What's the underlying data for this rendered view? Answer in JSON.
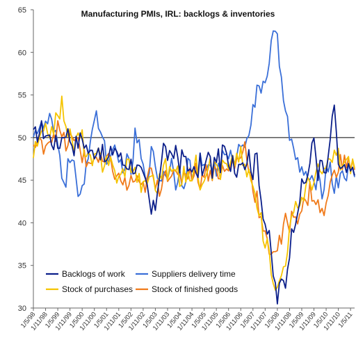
{
  "chart_data": {
    "type": "line",
    "title": "Manufacturing PMIs, IRL: backlogs & inventories",
    "xlabel": "",
    "ylabel": "",
    "ylim": [
      30,
      65
    ],
    "yticks": [
      30,
      35,
      40,
      45,
      50,
      55,
      60,
      65
    ],
    "reference_line": 50,
    "x_tick_labels": [
      "1/5/98",
      "1/11/98",
      "1/5/99",
      "1/11/99",
      "1/5/00",
      "1/11/00",
      "1/5/01",
      "1/11/01",
      "1/5/02",
      "1/11/02",
      "1/5/03",
      "1/11/03",
      "1/5/04",
      "1/11/04",
      "1/5/05",
      "1/11/05",
      "1/5/06",
      "1/11/06",
      "1/5/07",
      "1/11/07",
      "1/5/08",
      "1/11/08",
      "1/5/09",
      "1/11/09",
      "1/5/10",
      "1/11/10",
      "1/5/11"
    ],
    "x_start": "1998-05",
    "x_end": "2011-07",
    "legend_position": "bottom-left",
    "series": [
      {
        "name": "Backlogs of work",
        "color": "#0b1f8a",
        "anchors": [
          [
            0,
            50
          ],
          [
            4,
            51
          ],
          [
            8,
            50
          ],
          [
            12,
            49
          ],
          [
            16,
            51
          ],
          [
            20,
            49
          ],
          [
            24,
            50
          ],
          [
            28,
            48
          ],
          [
            32,
            49
          ],
          [
            36,
            47
          ],
          [
            40,
            49
          ],
          [
            44,
            47
          ],
          [
            48,
            47
          ],
          [
            52,
            46
          ],
          [
            56,
            44
          ],
          [
            58,
            41
          ],
          [
            60,
            42
          ],
          [
            62,
            46
          ],
          [
            64,
            49
          ],
          [
            66,
            48
          ],
          [
            68,
            47
          ],
          [
            70,
            49
          ],
          [
            72,
            47
          ],
          [
            74,
            48
          ],
          [
            76,
            46
          ],
          [
            78,
            47
          ],
          [
            80,
            45
          ],
          [
            82,
            47
          ],
          [
            84,
            46
          ],
          [
            86,
            48
          ],
          [
            88,
            46
          ],
          [
            90,
            48
          ],
          [
            92,
            47
          ],
          [
            94,
            49
          ],
          [
            96,
            46
          ],
          [
            98,
            48
          ],
          [
            100,
            46
          ],
          [
            102,
            48
          ],
          [
            104,
            47
          ],
          [
            106,
            48
          ],
          [
            108,
            46
          ],
          [
            110,
            48
          ],
          [
            112,
            43
          ],
          [
            114,
            40
          ],
          [
            116,
            38
          ],
          [
            118,
            34
          ],
          [
            120,
            31
          ],
          [
            122,
            33
          ],
          [
            124,
            33
          ],
          [
            126,
            37
          ],
          [
            128,
            40
          ],
          [
            130,
            42
          ],
          [
            132,
            44
          ],
          [
            134,
            45
          ],
          [
            136,
            47
          ],
          [
            138,
            50
          ],
          [
            140,
            46
          ],
          [
            142,
            47
          ],
          [
            144,
            45
          ],
          [
            146,
            50
          ],
          [
            148,
            53
          ],
          [
            149,
            51
          ],
          [
            150,
            47
          ],
          [
            151,
            46
          ]
        ]
      },
      {
        "name": "Suppliers delivery time",
        "color": "#3a6fd8",
        "anchors": [
          [
            0,
            51
          ],
          [
            4,
            51
          ],
          [
            8,
            52
          ],
          [
            12,
            49
          ],
          [
            14,
            46
          ],
          [
            16,
            45
          ],
          [
            18,
            48
          ],
          [
            20,
            47
          ],
          [
            22,
            42
          ],
          [
            24,
            44
          ],
          [
            26,
            47
          ],
          [
            28,
            50
          ],
          [
            30,
            52
          ],
          [
            32,
            52
          ],
          [
            34,
            50
          ],
          [
            36,
            48
          ],
          [
            38,
            47
          ],
          [
            40,
            48
          ],
          [
            42,
            47
          ],
          [
            44,
            47
          ],
          [
            46,
            47
          ],
          [
            48,
            46
          ],
          [
            50,
            50
          ],
          [
            52,
            49
          ],
          [
            54,
            46
          ],
          [
            56,
            46
          ],
          [
            58,
            48
          ],
          [
            60,
            47
          ],
          [
            62,
            45
          ],
          [
            64,
            46
          ],
          [
            66,
            46
          ],
          [
            68,
            47
          ],
          [
            70,
            45
          ],
          [
            72,
            46
          ],
          [
            74,
            45
          ],
          [
            76,
            47
          ],
          [
            78,
            46
          ],
          [
            80,
            46
          ],
          [
            82,
            47
          ],
          [
            84,
            46
          ],
          [
            86,
            47
          ],
          [
            88,
            47
          ],
          [
            90,
            46
          ],
          [
            92,
            47
          ],
          [
            94,
            48
          ],
          [
            96,
            47
          ],
          [
            98,
            48
          ],
          [
            100,
            48
          ],
          [
            102,
            49
          ],
          [
            104,
            50
          ],
          [
            106,
            51
          ],
          [
            108,
            53
          ],
          [
            110,
            55
          ],
          [
            112,
            56
          ],
          [
            114,
            57
          ],
          [
            116,
            59
          ],
          [
            118,
            62
          ],
          [
            120,
            61
          ],
          [
            122,
            57
          ],
          [
            124,
            54
          ],
          [
            126,
            50
          ],
          [
            128,
            48
          ],
          [
            130,
            47
          ],
          [
            132,
            46
          ],
          [
            134,
            46
          ],
          [
            136,
            44
          ],
          [
            138,
            45
          ],
          [
            140,
            45
          ],
          [
            142,
            44
          ],
          [
            144,
            46
          ],
          [
            146,
            47
          ],
          [
            148,
            44
          ],
          [
            150,
            45
          ],
          [
            151,
            46
          ]
        ]
      },
      {
        "name": "Stock of purchases",
        "color": "#f5c400",
        "anchors": [
          [
            0,
            48
          ],
          [
            4,
            50
          ],
          [
            8,
            51
          ],
          [
            12,
            52
          ],
          [
            14,
            54
          ],
          [
            16,
            52
          ],
          [
            18,
            50
          ],
          [
            20,
            49
          ],
          [
            22,
            50
          ],
          [
            24,
            50
          ],
          [
            26,
            48
          ],
          [
            28,
            47
          ],
          [
            30,
            47
          ],
          [
            32,
            48
          ],
          [
            34,
            47
          ],
          [
            36,
            48
          ],
          [
            38,
            47
          ],
          [
            40,
            46
          ],
          [
            42,
            45
          ],
          [
            44,
            46
          ],
          [
            46,
            47
          ],
          [
            48,
            47
          ],
          [
            50,
            46
          ],
          [
            52,
            45
          ],
          [
            54,
            44
          ],
          [
            56,
            45
          ],
          [
            58,
            46
          ],
          [
            60,
            44
          ],
          [
            62,
            45
          ],
          [
            64,
            47
          ],
          [
            66,
            46
          ],
          [
            68,
            46
          ],
          [
            70,
            46
          ],
          [
            72,
            45
          ],
          [
            74,
            46
          ],
          [
            76,
            45
          ],
          [
            78,
            46
          ],
          [
            80,
            47
          ],
          [
            82,
            45
          ],
          [
            84,
            46
          ],
          [
            86,
            47
          ],
          [
            88,
            46
          ],
          [
            90,
            47
          ],
          [
            92,
            46
          ],
          [
            94,
            47
          ],
          [
            96,
            46
          ],
          [
            98,
            47
          ],
          [
            100,
            48
          ],
          [
            102,
            48
          ],
          [
            104,
            46
          ],
          [
            106,
            46
          ],
          [
            108,
            44
          ],
          [
            110,
            42
          ],
          [
            112,
            40
          ],
          [
            114,
            38
          ],
          [
            116,
            36
          ],
          [
            118,
            34
          ],
          [
            120,
            32
          ],
          [
            122,
            34
          ],
          [
            124,
            36
          ],
          [
            126,
            39
          ],
          [
            128,
            41
          ],
          [
            130,
            42
          ],
          [
            132,
            43
          ],
          [
            134,
            44
          ],
          [
            136,
            45
          ],
          [
            138,
            45
          ],
          [
            140,
            46
          ],
          [
            142,
            46
          ],
          [
            144,
            46
          ],
          [
            146,
            47
          ],
          [
            148,
            48
          ],
          [
            150,
            48
          ],
          [
            151,
            47
          ]
        ]
      },
      {
        "name": "Stock of finished goods",
        "color": "#f07a1a",
        "anchors": [
          [
            0,
            49
          ],
          [
            4,
            49
          ],
          [
            8,
            50
          ],
          [
            12,
            51
          ],
          [
            14,
            50
          ],
          [
            16,
            49
          ],
          [
            18,
            50
          ],
          [
            20,
            49
          ],
          [
            22,
            50
          ],
          [
            24,
            48
          ],
          [
            26,
            47
          ],
          [
            28,
            47
          ],
          [
            30,
            48
          ],
          [
            32,
            47
          ],
          [
            34,
            47
          ],
          [
            36,
            47
          ],
          [
            38,
            47
          ],
          [
            40,
            46
          ],
          [
            42,
            45
          ],
          [
            44,
            45
          ],
          [
            46,
            44
          ],
          [
            48,
            45
          ],
          [
            50,
            45
          ],
          [
            52,
            44
          ],
          [
            54,
            44
          ],
          [
            56,
            45
          ],
          [
            58,
            46
          ],
          [
            60,
            44
          ],
          [
            62,
            44
          ],
          [
            64,
            46
          ],
          [
            66,
            46
          ],
          [
            68,
            46
          ],
          [
            70,
            45
          ],
          [
            72,
            45
          ],
          [
            74,
            46
          ],
          [
            76,
            46
          ],
          [
            78,
            46
          ],
          [
            80,
            46
          ],
          [
            82,
            45
          ],
          [
            84,
            46
          ],
          [
            86,
            46
          ],
          [
            88,
            46
          ],
          [
            90,
            46
          ],
          [
            92,
            46
          ],
          [
            94,
            46
          ],
          [
            96,
            46
          ],
          [
            98,
            47
          ],
          [
            100,
            47
          ],
          [
            102,
            48
          ],
          [
            104,
            49
          ],
          [
            106,
            47
          ],
          [
            108,
            44
          ],
          [
            110,
            43
          ],
          [
            112,
            40
          ],
          [
            114,
            38
          ],
          [
            116,
            37
          ],
          [
            118,
            37
          ],
          [
            120,
            37
          ],
          [
            122,
            38
          ],
          [
            124,
            40
          ],
          [
            126,
            40
          ],
          [
            128,
            41
          ],
          [
            130,
            41
          ],
          [
            132,
            42
          ],
          [
            134,
            42
          ],
          [
            136,
            44
          ],
          [
            138,
            43
          ],
          [
            140,
            42
          ],
          [
            142,
            41
          ],
          [
            144,
            42
          ],
          [
            146,
            44
          ],
          [
            148,
            47
          ],
          [
            150,
            46
          ],
          [
            151,
            47
          ]
        ]
      }
    ]
  }
}
